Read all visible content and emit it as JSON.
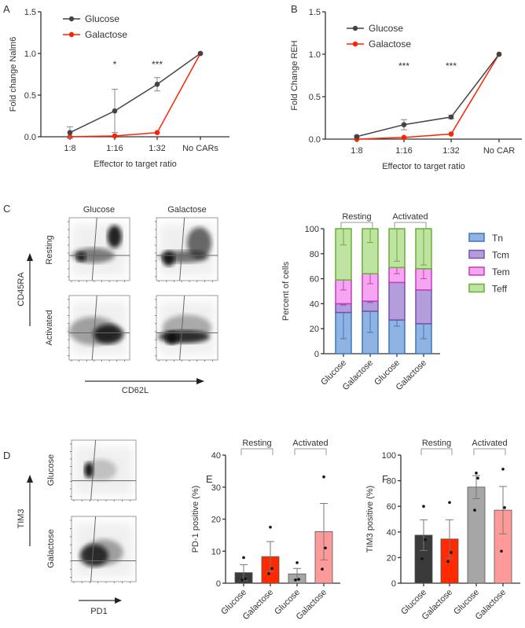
{
  "panel_letters": {
    "A": "A",
    "B": "B",
    "C": "C",
    "D": "D",
    "E": "E",
    "F": "F"
  },
  "colors": {
    "glucose": "#444444",
    "galactose": "#ff2200",
    "tn": "#8fb4e3",
    "tcm": "#b39ddb",
    "tem": "#f5a6f0",
    "teff": "#bfe3a0",
    "tn_edge": "#3f78b8",
    "tcm_edge": "#7a4fb0",
    "tem_edge": "#c43cc0",
    "teff_edge": "#6aae3a",
    "bar_glc_rest": "#3a3a3a",
    "bar_gal_rest": "#ff2a00",
    "bar_glc_act": "#a6a6a6",
    "bar_gal_act": "#ff9a9a"
  },
  "chart_data": [
    {
      "id": "A",
      "type": "line",
      "title": "",
      "xlabel": "Effector to target ratio",
      "ylabel": "Fold change Nalm6",
      "categories": [
        "1:8",
        "1:16",
        "1:32",
        "No CARs"
      ],
      "ylim": [
        0,
        1.5
      ],
      "yticks": [
        "0.0",
        "0.5",
        "1.0",
        "1.5"
      ],
      "ytick_values": [
        0,
        0.5,
        1.0,
        1.5
      ],
      "legend_position": "top-left",
      "series": [
        {
          "name": "Glucose",
          "values": [
            0.05,
            0.31,
            0.63,
            1.0
          ],
          "errors": [
            0.07,
            0.26,
            0.08,
            0
          ]
        },
        {
          "name": "Galactose",
          "values": [
            0.0,
            0.01,
            0.05,
            1.0
          ],
          "errors": [
            0,
            0,
            0,
            0
          ]
        }
      ],
      "annotations": [
        {
          "category": "1:16",
          "text": "*"
        },
        {
          "category": "1:32",
          "text": "***"
        }
      ]
    },
    {
      "id": "B",
      "type": "line",
      "title": "",
      "xlabel": "Effector to target ratio",
      "ylabel": "Fold Change REH",
      "categories": [
        "1:8",
        "1:16",
        "1:32",
        "No CAR"
      ],
      "ylim": [
        0,
        1.5
      ],
      "yticks": [
        "0.0",
        "0.5",
        "1.0",
        "1.5"
      ],
      "ytick_values": [
        0,
        0.5,
        1.0,
        1.5
      ],
      "legend_position": "top-left",
      "series": [
        {
          "name": "Glucose",
          "values": [
            0.03,
            0.17,
            0.26,
            1.0
          ],
          "errors": [
            0.01,
            0.06,
            0.02,
            0
          ]
        },
        {
          "name": "Galactose",
          "values": [
            0.0,
            0.02,
            0.06,
            1.0
          ],
          "errors": [
            0,
            0,
            0,
            0
          ]
        }
      ],
      "annotations": [
        {
          "category": "1:16",
          "text": "***"
        },
        {
          "category": "1:32",
          "text": "***"
        }
      ]
    },
    {
      "id": "C-flow",
      "type": "scatter",
      "column_labels": [
        "Glucose",
        "Galactose"
      ],
      "row_labels": [
        "Resting",
        "Activated"
      ],
      "ylabel": "CD45RA",
      "xlabel": "CD62L"
    },
    {
      "id": "C-bar",
      "type": "bar",
      "stacked": true,
      "ylabel": "Percent of cells",
      "ylim": [
        0,
        100
      ],
      "yticks": [
        "0",
        "20",
        "40",
        "60",
        "80",
        "100"
      ],
      "ytick_values": [
        0,
        20,
        40,
        60,
        80,
        100
      ],
      "categories": [
        "Glucose",
        "Galactose",
        "Glucose",
        "Galactose"
      ],
      "groups": [
        {
          "label": "Resting",
          "span": [
            0,
            1
          ]
        },
        {
          "label": "Activated",
          "span": [
            2,
            3
          ]
        }
      ],
      "legend_position": "right",
      "series": [
        {
          "name": "Tn",
          "values": [
            33,
            34,
            27,
            24
          ],
          "errors": [
            21,
            17,
            5,
            12
          ]
        },
        {
          "name": "Tcm",
          "values": [
            7,
            8,
            30,
            27
          ],
          "errors": [
            1,
            1,
            0,
            0
          ]
        },
        {
          "name": "Tem",
          "values": [
            19,
            22,
            12,
            17
          ],
          "errors": [
            8,
            8,
            5,
            8
          ]
        },
        {
          "name": "Teff",
          "values": [
            41,
            36,
            31,
            32
          ],
          "errors": [
            13,
            11,
            26,
            29
          ]
        }
      ]
    },
    {
      "id": "D-flow",
      "type": "scatter",
      "row_labels": [
        "Glucose",
        "Galactose"
      ],
      "ylabel": "TIM3",
      "xlabel": "PD1"
    },
    {
      "id": "E",
      "type": "bar",
      "ylabel": "PD-1 positive (%)",
      "ylim": [
        0,
        40
      ],
      "yticks": [
        "0",
        "10",
        "20",
        "30",
        "40"
      ],
      "ytick_values": [
        0,
        10,
        20,
        30,
        40
      ],
      "categories": [
        "Glucose",
        "Galactose",
        "Glucose",
        "Galactose"
      ],
      "groups": [
        {
          "label": "Resting",
          "span": [
            0,
            1
          ]
        },
        {
          "label": "Activated",
          "span": [
            2,
            3
          ]
        }
      ],
      "values": [
        3.3,
        8.3,
        2.9,
        16.1
      ],
      "errors": [
        2.5,
        4.7,
        1.7,
        8.8
      ],
      "points": [
        [
          1.0,
          1.3,
          8.0
        ],
        [
          3.0,
          4.6,
          17.5
        ],
        [
          1.0,
          1.2,
          6.4
        ],
        [
          4.4,
          11.0,
          33.2
        ]
      ]
    },
    {
      "id": "F",
      "type": "bar",
      "ylabel": "TIM3 positive (%)",
      "ylim": [
        0,
        100
      ],
      "yticks": [
        "0",
        "20",
        "40",
        "60",
        "80",
        "100"
      ],
      "ytick_values": [
        0,
        20,
        40,
        60,
        80,
        100
      ],
      "categories": [
        "Glucose",
        "Galactose",
        "Glucose",
        "Galactose"
      ],
      "groups": [
        {
          "label": "Resting",
          "span": [
            0,
            1
          ]
        },
        {
          "label": "Activated",
          "span": [
            2,
            3
          ]
        }
      ],
      "values": [
        37.5,
        34.5,
        75.0,
        57.0
      ],
      "errors": [
        12,
        15,
        9,
        18.5
      ],
      "points": [
        [
          19,
          34,
          60
        ],
        [
          17,
          24,
          63
        ],
        [
          57,
          82,
          86
        ],
        [
          25,
          59,
          89
        ]
      ]
    }
  ]
}
